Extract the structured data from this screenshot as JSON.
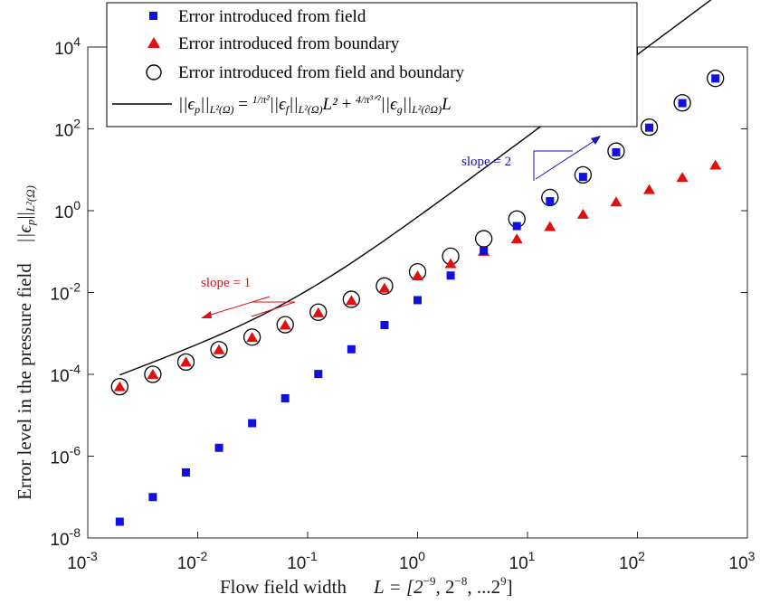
{
  "chart_data": {
    "type": "scatter",
    "xscale": "log",
    "yscale": "log",
    "xlim": [
      0.001,
      1000
    ],
    "ylim": [
      1e-08,
      10000
    ],
    "x_ticks": [
      {
        "value": 0.001,
        "base": "10",
        "exp": "-3"
      },
      {
        "value": 0.01,
        "base": "10",
        "exp": "-2"
      },
      {
        "value": 0.1,
        "base": "10",
        "exp": "-1"
      },
      {
        "value": 1,
        "base": "10",
        "exp": "0"
      },
      {
        "value": 10,
        "base": "10",
        "exp": "1"
      },
      {
        "value": 100,
        "base": "10",
        "exp": "2"
      },
      {
        "value": 1000,
        "base": "10",
        "exp": "3"
      }
    ],
    "y_ticks": [
      {
        "value": 1e-08,
        "base": "10",
        "exp": "-8"
      },
      {
        "value": 1e-06,
        "base": "10",
        "exp": "-6"
      },
      {
        "value": 0.0001,
        "base": "10",
        "exp": "-4"
      },
      {
        "value": 0.01,
        "base": "10",
        "exp": "-2"
      },
      {
        "value": 1,
        "base": "10",
        "exp": "0"
      },
      {
        "value": 100,
        "base": "10",
        "exp": "2"
      },
      {
        "value": 10000,
        "base": "10",
        "exp": "4"
      }
    ],
    "xlabel": {
      "prefix": "Flow field width",
      "math": "L = [2",
      "e1": "−9",
      "m2": ", 2",
      "e2": "−8",
      "m3": ", ...2",
      "e3": "9",
      "m4": "]"
    },
    "ylabel": {
      "text": "Error level in the pressure field",
      "math": "||ϵ",
      "sub": "p",
      "math2": "||",
      "sub2": "L²(Ω)"
    },
    "x": [
      0.001953,
      0.003906,
      0.007813,
      0.015625,
      0.03125,
      0.0625,
      0.125,
      0.25,
      0.5,
      1,
      2,
      4,
      8,
      16,
      32,
      64,
      128,
      256,
      512
    ],
    "series": [
      {
        "name": "Error introduced from field",
        "marker": "square",
        "color": "#1010e0",
        "values": [
          2.5e-08,
          1e-07,
          4e-07,
          1.6e-06,
          6.4e-06,
          2.6e-05,
          0.000102,
          0.00041,
          0.0016,
          0.0065,
          0.026,
          0.104,
          0.42,
          1.7,
          6.7,
          26.8,
          107,
          425,
          1700
        ]
      },
      {
        "name": "Error introduced from boundary",
        "marker": "triangle",
        "color": "#e01010",
        "values": [
          5e-05,
          0.0001,
          0.0002,
          0.0004,
          0.0008,
          0.0016,
          0.0032,
          0.0064,
          0.0128,
          0.0256,
          0.051,
          0.102,
          0.205,
          0.41,
          0.82,
          1.64,
          3.28,
          6.55,
          13.1
        ]
      },
      {
        "name": "Error introduced from field and boundary",
        "marker": "circle",
        "color": "#000000",
        "values": [
          5e-05,
          0.0001,
          0.0002,
          0.0004,
          0.00081,
          0.00163,
          0.0033,
          0.0068,
          0.0144,
          0.032,
          0.077,
          0.206,
          0.625,
          2.1,
          7.5,
          28.5,
          110,
          432,
          1713
        ]
      }
    ],
    "line": {
      "name_parts": {
        "lhs": "||ϵ",
        "lhs_sub": "p",
        "lhs_norm": "||",
        "lhs_norm_sub": "L²(Ω)",
        "eq": " = ",
        "frac1_num": "1",
        "frac1_den": "π²",
        "term1": "||ϵ",
        "term1_sub": "f",
        "term1_norm": "||",
        "term1_norm_sub": "L²(Ω)",
        "term1_tail": "L²",
        "plus": " + ",
        "frac2_num": "4",
        "frac2_den": "π³ᐟ²",
        "term2": "||ϵ",
        "term2_sub": "g",
        "term2_norm": "||",
        "term2_norm_sub": "L²(∂Ω)",
        "term2_tail": "L"
      },
      "color": "#000000",
      "coef_quadratic": 0.655,
      "coef_linear": 0.0481
    },
    "annotations": [
      {
        "text": "slope = 1",
        "color": "#e01010"
      },
      {
        "text": "slope = 2",
        "color": "#1010c0"
      }
    ],
    "legend_position": "top-left",
    "grid": false
  }
}
